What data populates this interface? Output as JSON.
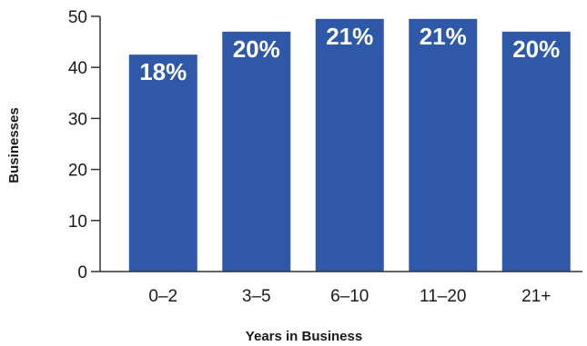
{
  "chart_data": {
    "type": "bar",
    "title": "",
    "xlabel": "Years in Business",
    "ylabel": "Businesses",
    "categories": [
      "0–2",
      "3–5",
      "6–10",
      "11–20",
      "21+"
    ],
    "values": [
      42.5,
      47,
      49.5,
      49.5,
      47
    ],
    "data_labels": [
      "18%",
      "20%",
      "21%",
      "21%",
      "20%"
    ],
    "yticks": [
      0,
      10,
      20,
      30,
      40,
      50
    ],
    "ylim": [
      0,
      50
    ],
    "grid": false,
    "legend": "none",
    "bar_color": "#2f58a8"
  }
}
